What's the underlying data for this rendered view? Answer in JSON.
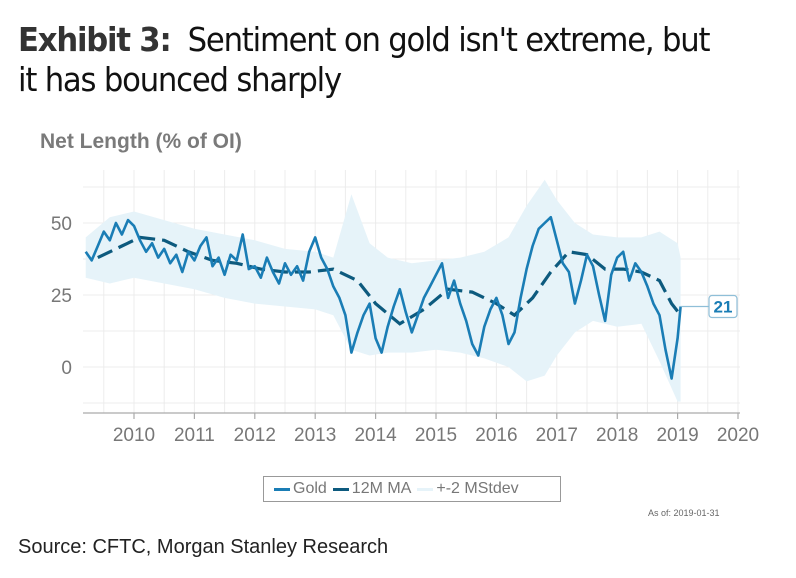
{
  "title": {
    "exhibit": "Exhibit 3:",
    "text": "Sentiment on gold isn't extreme, but it has bounced sharply"
  },
  "source": "Source: CFTC, Morgan Stanley Research",
  "as_of": "As of:  2019-01-31",
  "colors": {
    "gold": "#1a7db5",
    "ma": "#0d5a7e",
    "band": "#e6f3f9",
    "grid": "#ececec",
    "label_border": "#8fbfd8"
  },
  "chart_data": {
    "type": "line",
    "title": "",
    "ylabel": "Net Length (% of OI)",
    "xlabel": "",
    "xlim": [
      2009.2,
      2020.05
    ],
    "ylim": [
      -15,
      62.5
    ],
    "x_ticks": [
      "2010",
      "2011",
      "2012",
      "2013",
      "2014",
      "2015",
      "2016",
      "2017",
      "2018",
      "2019",
      "2020"
    ],
    "y_ticks": [
      "0",
      "25",
      "50"
    ],
    "grid": true,
    "legend": {
      "position": "bottom",
      "entries": [
        "Gold",
        "12M MA",
        "+-2 MStdev"
      ]
    },
    "end_label": "21",
    "series": [
      {
        "name": "Gold",
        "x": [
          2009.2,
          2009.3,
          2009.4,
          2009.5,
          2009.6,
          2009.7,
          2009.8,
          2009.9,
          2010.0,
          2010.1,
          2010.2,
          2010.3,
          2010.4,
          2010.5,
          2010.6,
          2010.7,
          2010.8,
          2010.9,
          2011.0,
          2011.1,
          2011.2,
          2011.3,
          2011.4,
          2011.5,
          2011.6,
          2011.7,
          2011.8,
          2011.9,
          2012.0,
          2012.1,
          2012.2,
          2012.3,
          2012.4,
          2012.5,
          2012.6,
          2012.7,
          2012.8,
          2012.9,
          2013.0,
          2013.1,
          2013.2,
          2013.3,
          2013.4,
          2013.5,
          2013.6,
          2013.7,
          2013.8,
          2013.9,
          2014.0,
          2014.1,
          2014.2,
          2014.3,
          2014.4,
          2014.5,
          2014.6,
          2014.7,
          2014.8,
          2014.9,
          2015.0,
          2015.1,
          2015.2,
          2015.3,
          2015.4,
          2015.5,
          2015.6,
          2015.7,
          2015.8,
          2015.9,
          2016.0,
          2016.1,
          2016.2,
          2016.3,
          2016.4,
          2016.5,
          2016.6,
          2016.7,
          2016.8,
          2016.9,
          2017.0,
          2017.1,
          2017.2,
          2017.3,
          2017.4,
          2017.5,
          2017.6,
          2017.7,
          2017.8,
          2017.9,
          2018.0,
          2018.1,
          2018.2,
          2018.3,
          2018.4,
          2018.5,
          2018.6,
          2018.7,
          2018.8,
          2018.9,
          2019.0,
          2019.05
        ],
        "values": [
          40,
          37,
          42,
          47,
          44,
          50,
          46,
          51,
          49,
          44,
          40,
          43,
          38,
          41,
          36,
          39,
          33,
          40,
          37,
          42,
          45,
          35,
          38,
          32,
          39,
          37,
          46,
          34,
          35,
          31,
          38,
          33,
          29,
          36,
          32,
          35,
          30,
          40,
          45,
          38,
          34,
          28,
          24,
          18,
          5,
          12,
          18,
          22,
          10,
          5,
          14,
          21,
          27,
          19,
          12,
          18,
          24,
          28,
          32,
          36,
          24,
          30,
          22,
          16,
          8,
          4,
          14,
          20,
          24,
          18,
          8,
          12,
          24,
          34,
          42,
          48,
          50,
          52,
          44,
          36,
          33,
          22,
          30,
          39,
          35,
          25,
          16,
          32,
          38,
          40,
          30,
          36,
          33,
          28,
          22,
          18,
          6,
          -4,
          10,
          21
        ]
      },
      {
        "name": "12M MA",
        "x": [
          2009.4,
          2009.8,
          2010.1,
          2010.5,
          2010.9,
          2011.3,
          2011.7,
          2012.1,
          2012.5,
          2012.9,
          2013.3,
          2013.7,
          2014.0,
          2014.4,
          2014.8,
          2015.2,
          2015.6,
          2016.0,
          2016.3,
          2016.6,
          2016.9,
          2017.2,
          2017.5,
          2017.8,
          2018.1,
          2018.4,
          2018.7,
          2018.9,
          2019.05
        ],
        "values": [
          38,
          42,
          45,
          44,
          40,
          37,
          36,
          34,
          33,
          33,
          34,
          30,
          22,
          15,
          20,
          27,
          26,
          22,
          18,
          24,
          33,
          40,
          39,
          34,
          34,
          33,
          30,
          22,
          18
        ]
      },
      {
        "name": "+-2 MStdev upper",
        "x": [
          2009.2,
          2009.6,
          2010.0,
          2010.5,
          2011.0,
          2011.5,
          2012.0,
          2012.5,
          2013.0,
          2013.3,
          2013.6,
          2013.9,
          2014.2,
          2014.6,
          2015.0,
          2015.4,
          2015.8,
          2016.2,
          2016.5,
          2016.8,
          2017.0,
          2017.3,
          2017.6,
          2018.0,
          2018.4,
          2018.7,
          2019.0,
          2019.05
        ],
        "values": [
          45,
          52,
          54,
          51,
          48,
          46,
          44,
          41,
          40,
          38,
          60,
          43,
          38,
          36,
          37,
          38,
          40,
          45,
          56,
          65,
          58,
          50,
          46,
          45,
          45,
          47,
          43,
          38
        ]
      },
      {
        "name": "+-2 MStdev lower",
        "x": [
          2009.2,
          2009.6,
          2010.0,
          2010.5,
          2011.0,
          2011.5,
          2012.0,
          2012.5,
          2013.0,
          2013.3,
          2013.6,
          2013.9,
          2014.2,
          2014.6,
          2015.0,
          2015.4,
          2015.8,
          2016.2,
          2016.5,
          2016.8,
          2017.0,
          2017.3,
          2017.6,
          2018.0,
          2018.4,
          2018.7,
          2019.0,
          2019.05
        ],
        "values": [
          31,
          29,
          31,
          29,
          27,
          24,
          22,
          21,
          20,
          18,
          6,
          4,
          5,
          5,
          6,
          5,
          3,
          0,
          -5,
          -3,
          4,
          12,
          16,
          14,
          15,
          2,
          -12,
          -12
        ]
      }
    ]
  }
}
